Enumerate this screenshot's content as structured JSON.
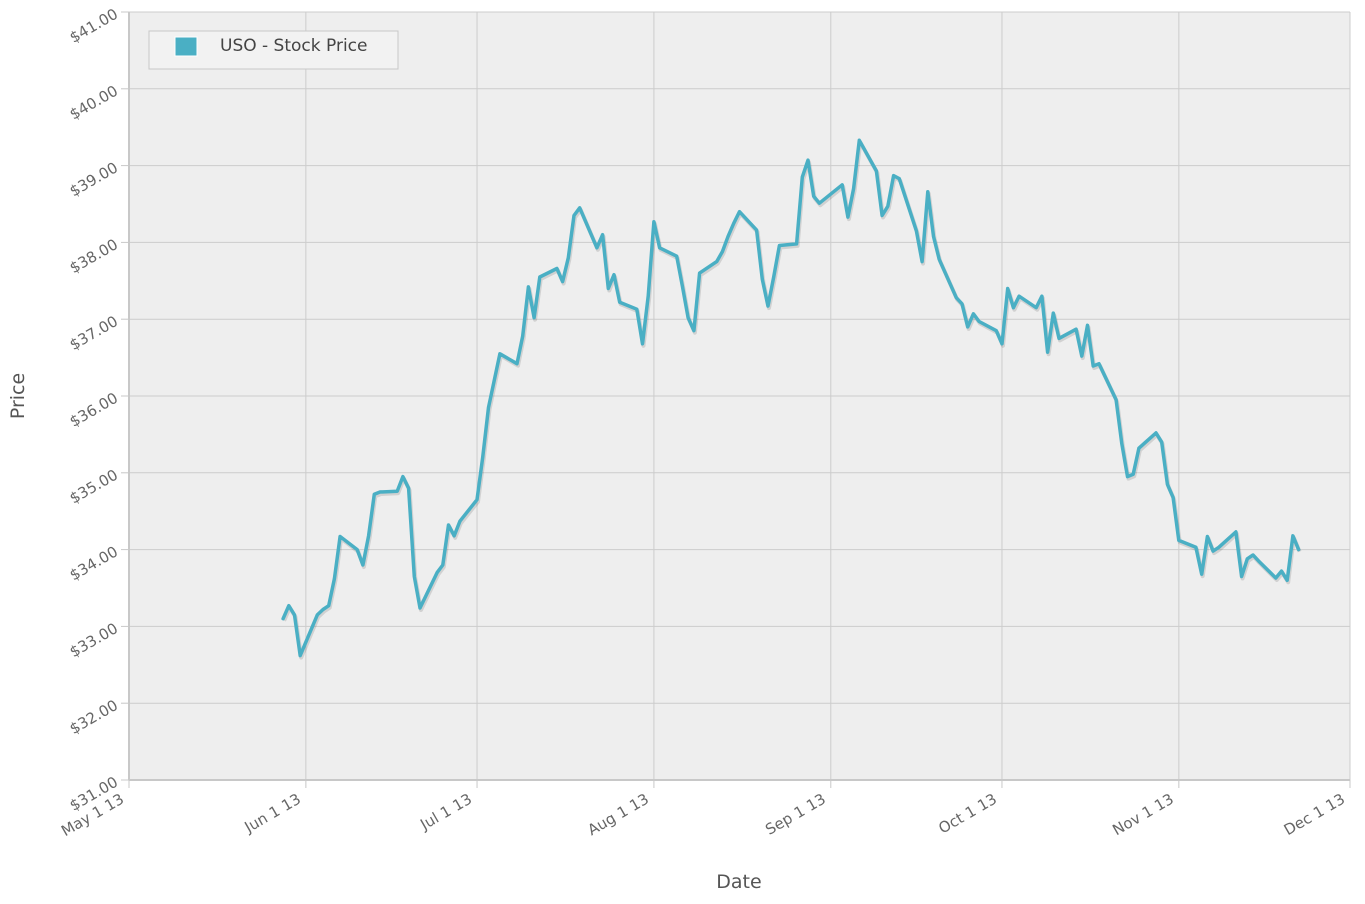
{
  "chart_data": {
    "type": "line",
    "title": "",
    "xlabel": "Date",
    "ylabel": "Price",
    "grid": true,
    "legend_position": "top-left",
    "xlim": [
      "2013-05-01",
      "2013-12-01"
    ],
    "ylim": [
      31,
      41
    ],
    "x_ticks": [
      {
        "date": "2013-05-01",
        "label": "May 1 13"
      },
      {
        "date": "2013-06-01",
        "label": "Jun 1 13"
      },
      {
        "date": "2013-07-01",
        "label": "Jul 1 13"
      },
      {
        "date": "2013-08-01",
        "label": "Aug 1 13"
      },
      {
        "date": "2013-09-01",
        "label": "Sep 1 13"
      },
      {
        "date": "2013-10-01",
        "label": "Oct 1 13"
      },
      {
        "date": "2013-11-01",
        "label": "Nov 1 13"
      },
      {
        "date": "2013-12-01",
        "label": "Dec 1 13"
      }
    ],
    "y_ticks": [
      {
        "value": 31,
        "label": "$31.00"
      },
      {
        "value": 32,
        "label": "$32.00"
      },
      {
        "value": 33,
        "label": "$33.00"
      },
      {
        "value": 34,
        "label": "$34.00"
      },
      {
        "value": 35,
        "label": "$35.00"
      },
      {
        "value": 36,
        "label": "$36.00"
      },
      {
        "value": 37,
        "label": "$37.00"
      },
      {
        "value": 38,
        "label": "$38.00"
      },
      {
        "value": 39,
        "label": "$39.00"
      },
      {
        "value": 40,
        "label": "$40.00"
      },
      {
        "value": 41,
        "label": "$41.00"
      }
    ],
    "series": [
      {
        "name": "USO - Stock Price",
        "color": "#4aafc4",
        "points": [
          [
            "2013-05-28",
            33.1
          ],
          [
            "2013-05-29",
            33.27
          ],
          [
            "2013-05-30",
            33.15
          ],
          [
            "2013-05-31",
            32.62
          ],
          [
            "2013-06-03",
            33.15
          ],
          [
            "2013-06-04",
            33.22
          ],
          [
            "2013-06-05",
            33.27
          ],
          [
            "2013-06-06",
            33.62
          ],
          [
            "2013-06-07",
            34.17
          ],
          [
            "2013-06-10",
            34.0
          ],
          [
            "2013-06-11",
            33.8
          ],
          [
            "2013-06-12",
            34.18
          ],
          [
            "2013-06-13",
            34.72
          ],
          [
            "2013-06-14",
            34.75
          ],
          [
            "2013-06-17",
            34.76
          ],
          [
            "2013-06-18",
            34.95
          ],
          [
            "2013-06-19",
            34.8
          ],
          [
            "2013-06-20",
            33.65
          ],
          [
            "2013-06-21",
            33.24
          ],
          [
            "2013-06-24",
            33.7
          ],
          [
            "2013-06-25",
            33.8
          ],
          [
            "2013-06-26",
            34.32
          ],
          [
            "2013-06-27",
            34.18
          ],
          [
            "2013-06-28",
            34.37
          ],
          [
            "2013-07-01",
            34.65
          ],
          [
            "2013-07-02",
            35.2
          ],
          [
            "2013-07-03",
            35.85
          ],
          [
            "2013-07-05",
            36.55
          ],
          [
            "2013-07-08",
            36.42
          ],
          [
            "2013-07-09",
            36.78
          ],
          [
            "2013-07-10",
            37.42
          ],
          [
            "2013-07-11",
            37.02
          ],
          [
            "2013-07-12",
            37.55
          ],
          [
            "2013-07-15",
            37.66
          ],
          [
            "2013-07-16",
            37.49
          ],
          [
            "2013-07-17",
            37.8
          ],
          [
            "2013-07-18",
            38.35
          ],
          [
            "2013-07-19",
            38.45
          ],
          [
            "2013-07-22",
            37.93
          ],
          [
            "2013-07-23",
            38.1
          ],
          [
            "2013-07-24",
            37.4
          ],
          [
            "2013-07-25",
            37.58
          ],
          [
            "2013-07-26",
            37.22
          ],
          [
            "2013-07-29",
            37.13
          ],
          [
            "2013-07-30",
            36.68
          ],
          [
            "2013-07-31",
            37.3
          ],
          [
            "2013-08-01",
            38.27
          ],
          [
            "2013-08-02",
            37.93
          ],
          [
            "2013-08-05",
            37.82
          ],
          [
            "2013-08-06",
            37.43
          ],
          [
            "2013-08-07",
            37.02
          ],
          [
            "2013-08-08",
            36.85
          ],
          [
            "2013-08-09",
            37.6
          ],
          [
            "2013-08-12",
            37.75
          ],
          [
            "2013-08-13",
            37.88
          ],
          [
            "2013-08-14",
            38.08
          ],
          [
            "2013-08-15",
            38.25
          ],
          [
            "2013-08-16",
            38.4
          ],
          [
            "2013-08-19",
            38.16
          ],
          [
            "2013-08-20",
            37.52
          ],
          [
            "2013-08-21",
            37.17
          ],
          [
            "2013-08-22",
            37.55
          ],
          [
            "2013-08-23",
            37.96
          ],
          [
            "2013-08-26",
            37.98
          ],
          [
            "2013-08-27",
            38.85
          ],
          [
            "2013-08-28",
            39.07
          ],
          [
            "2013-08-29",
            38.6
          ],
          [
            "2013-08-30",
            38.51
          ],
          [
            "2013-09-03",
            38.75
          ],
          [
            "2013-09-04",
            38.33
          ],
          [
            "2013-09-05",
            38.7
          ],
          [
            "2013-09-06",
            39.33
          ],
          [
            "2013-09-09",
            38.93
          ],
          [
            "2013-09-10",
            38.35
          ],
          [
            "2013-09-11",
            38.47
          ],
          [
            "2013-09-12",
            38.87
          ],
          [
            "2013-09-13",
            38.83
          ],
          [
            "2013-09-16",
            38.15
          ],
          [
            "2013-09-17",
            37.75
          ],
          [
            "2013-09-18",
            38.66
          ],
          [
            "2013-09-19",
            38.08
          ],
          [
            "2013-09-20",
            37.78
          ],
          [
            "2013-09-23",
            37.28
          ],
          [
            "2013-09-24",
            37.2
          ],
          [
            "2013-09-25",
            36.9
          ],
          [
            "2013-09-26",
            37.07
          ],
          [
            "2013-09-27",
            36.97
          ],
          [
            "2013-09-30",
            36.85
          ],
          [
            "2013-10-01",
            36.68
          ],
          [
            "2013-10-02",
            37.4
          ],
          [
            "2013-10-03",
            37.15
          ],
          [
            "2013-10-04",
            37.3
          ],
          [
            "2013-10-07",
            37.15
          ],
          [
            "2013-10-08",
            37.3
          ],
          [
            "2013-10-09",
            36.57
          ],
          [
            "2013-10-10",
            37.08
          ],
          [
            "2013-10-11",
            36.75
          ],
          [
            "2013-10-14",
            36.87
          ],
          [
            "2013-10-15",
            36.52
          ],
          [
            "2013-10-16",
            36.92
          ],
          [
            "2013-10-17",
            36.39
          ],
          [
            "2013-10-18",
            36.42
          ],
          [
            "2013-10-21",
            35.95
          ],
          [
            "2013-10-22",
            35.38
          ],
          [
            "2013-10-23",
            34.95
          ],
          [
            "2013-10-24",
            34.98
          ],
          [
            "2013-10-25",
            35.32
          ],
          [
            "2013-10-28",
            35.52
          ],
          [
            "2013-10-29",
            35.4
          ],
          [
            "2013-10-30",
            34.85
          ],
          [
            "2013-10-31",
            34.68
          ],
          [
            "2013-11-01",
            34.12
          ],
          [
            "2013-11-04",
            34.03
          ],
          [
            "2013-11-05",
            33.68
          ],
          [
            "2013-11-06",
            34.17
          ],
          [
            "2013-11-07",
            33.98
          ],
          [
            "2013-11-08",
            34.03
          ],
          [
            "2013-11-11",
            34.23
          ],
          [
            "2013-11-12",
            33.65
          ],
          [
            "2013-11-13",
            33.88
          ],
          [
            "2013-11-14",
            33.93
          ],
          [
            "2013-11-15",
            33.85
          ],
          [
            "2013-11-18",
            33.63
          ],
          [
            "2013-11-19",
            33.72
          ],
          [
            "2013-11-20",
            33.6
          ],
          [
            "2013-11-21",
            34.18
          ],
          [
            "2013-11-22",
            34.0
          ]
        ]
      }
    ]
  }
}
